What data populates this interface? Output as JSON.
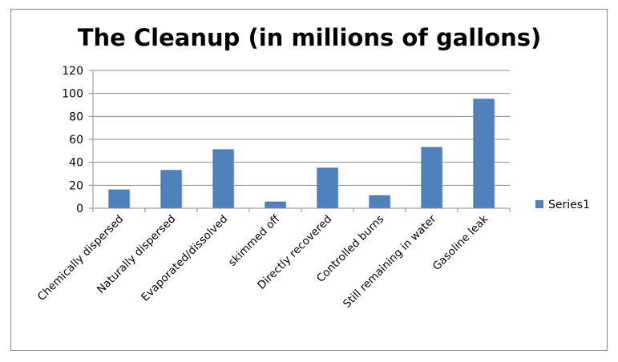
{
  "chart_data": {
    "type": "bar",
    "title": "The Cleanup (in millions of gallons)",
    "xlabel": "",
    "ylabel": "",
    "categories": [
      "Chemically dispersed",
      "Naturally dispersed",
      "Evaporated/dissolved",
      "skimmed off",
      "Directly recovered",
      "Controlled burns",
      "Still remaining in water",
      "Gasoline leak"
    ],
    "series": [
      {
        "name": "Series1",
        "values": [
          16,
          33,
          51,
          5.5,
          35,
          11,
          53,
          95
        ]
      }
    ],
    "ylim": [
      0,
      120
    ],
    "yticks": [
      "0",
      "20",
      "40",
      "60",
      "80",
      "100",
      "120"
    ],
    "grid": true,
    "legend": "right",
    "colors": {
      "bar": "#4F81BD",
      "bar_border": "#3A6BA7",
      "grid": "#8C8C8C",
      "axis": "#8C8C8C"
    }
  }
}
